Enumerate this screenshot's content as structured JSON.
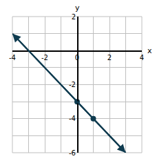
{
  "chart_data": {
    "type": "line",
    "x_label": "x",
    "y_label": "y",
    "series": [
      {
        "type": "line",
        "x": [
          -4,
          3
        ],
        "values": [
          1,
          -6
        ],
        "color": "#0f3b4f",
        "line_style": "solid",
        "marker": "arrow"
      },
      {
        "type": "scatter",
        "x": [
          0,
          1
        ],
        "values": [
          -3,
          -4
        ],
        "color": "#0f3b4f",
        "marker": "circle"
      }
    ],
    "xlim": [
      -4,
      4
    ],
    "xticks": [
      -4,
      -2,
      0,
      2,
      4
    ],
    "ylim": [
      -6,
      2
    ],
    "yticks": [
      -6,
      -4,
      -2,
      2
    ],
    "grid": true
  }
}
